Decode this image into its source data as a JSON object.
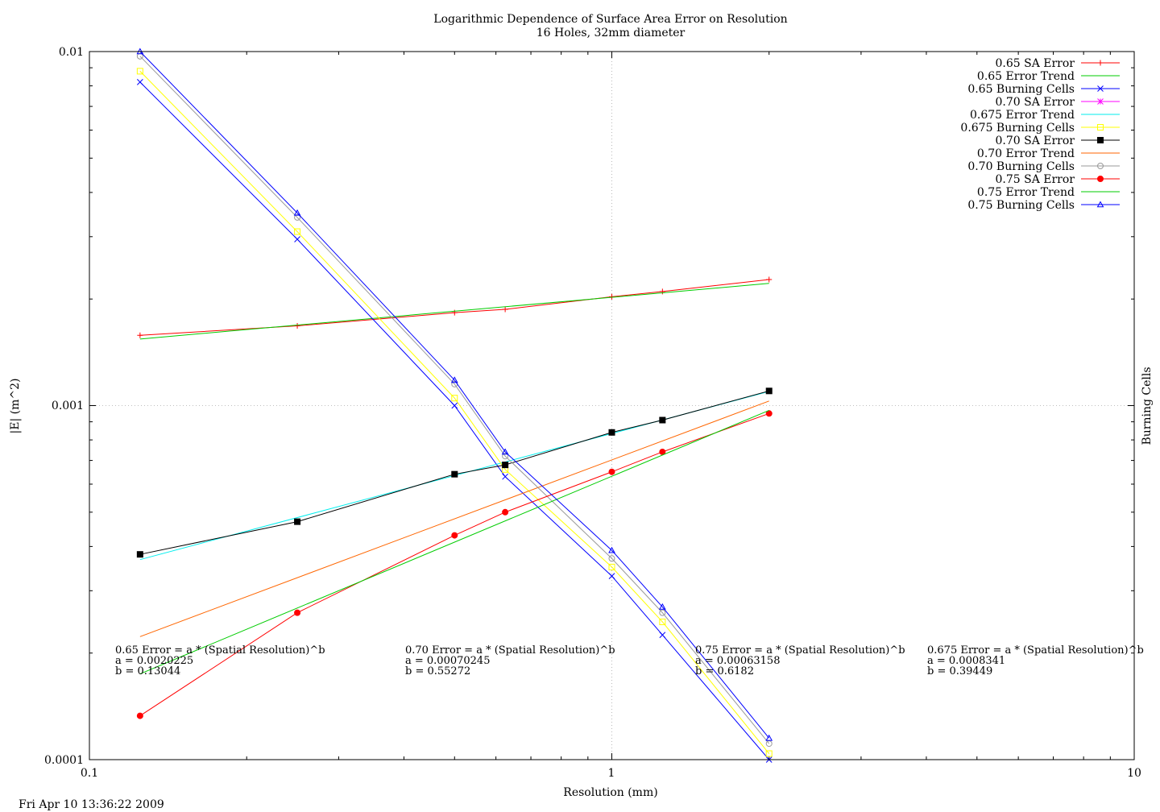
{
  "chart_data": {
    "type": "line",
    "title": "Logarithmic Dependence of Surface Area Error on Resolution",
    "subtitle": "16 Holes, 32mm diameter",
    "xlabel": "Resolution (mm)",
    "ylabel": "|E| (m^2)",
    "y2label": "Burning Cells",
    "x_scale": "log",
    "y_scale": "log",
    "xlim": [
      0.1,
      10
    ],
    "ylim": [
      0.0001,
      0.01
    ],
    "grid": "major",
    "legend_position": "top-right",
    "x_ticks": [
      "0.1",
      "1",
      "10"
    ],
    "y_ticks": [
      "0.0001",
      "0.001",
      "0.01"
    ],
    "timestamp": "Fri Apr 10 13:36:22 2009",
    "series": [
      {
        "name": "0.65 SA Error",
        "color": "#ff0000",
        "marker": "plus",
        "kind": "data",
        "x": [
          0.125,
          0.25,
          0.5,
          0.625,
          1,
          1.25,
          2
        ],
        "y": [
          0.00158,
          0.00168,
          0.00183,
          0.00187,
          0.00203,
          0.0021,
          0.00227
        ]
      },
      {
        "name": "0.65 Error Trend",
        "color": "#00cc00",
        "marker": "none",
        "kind": "trend",
        "a": 0.0020225,
        "b": 0.13044,
        "x": [
          0.125,
          2
        ]
      },
      {
        "name": "0.65 Burning Cells",
        "color": "#0000ff",
        "marker": "x",
        "kind": "data",
        "x": [
          0.125,
          0.25,
          0.5,
          0.625,
          1,
          1.25,
          2
        ],
        "y": [
          0.0082,
          0.00295,
          0.001,
          0.00063,
          0.00033,
          0.000225,
          0.0001
        ]
      },
      {
        "name": "0.70 SA Error",
        "color": "#ff00ff",
        "marker": "star",
        "kind": "data",
        "x": [],
        "y": []
      },
      {
        "name": "0.675 Error Trend",
        "color": "#00eeee",
        "marker": "none",
        "kind": "trend",
        "a": 0.0008341,
        "b": 0.39449,
        "x": [
          0.125,
          2
        ]
      },
      {
        "name": "0.675 Burning Cells",
        "color": "#ffff00",
        "marker": "square-open",
        "kind": "data",
        "x": [
          0.125,
          0.25,
          0.5,
          0.625,
          1,
          1.25,
          2
        ],
        "y": [
          0.0088,
          0.0031,
          0.00105,
          0.00066,
          0.00035,
          0.000245,
          0.000104
        ]
      },
      {
        "name": "0.70 SA Error",
        "color": "#000000",
        "marker": "square-filled",
        "kind": "data",
        "x": [
          0.125,
          0.25,
          0.5,
          0.625,
          1,
          1.25,
          2
        ],
        "y": [
          0.00038,
          0.00047,
          0.00064,
          0.00068,
          0.00084,
          0.00091,
          0.0011
        ]
      },
      {
        "name": "0.70 Error Trend",
        "color": "#ff6600",
        "marker": "none",
        "kind": "trend",
        "a": 0.00070245,
        "b": 0.55272,
        "x": [
          0.125,
          2
        ]
      },
      {
        "name": "0.70 Burning Cells",
        "color": "#999999",
        "marker": "circle-open",
        "kind": "data",
        "x": [
          0.125,
          0.25,
          0.5,
          0.625,
          1,
          1.25,
          2
        ],
        "y": [
          0.0097,
          0.0034,
          0.00115,
          0.00072,
          0.00037,
          0.00026,
          0.000111
        ]
      },
      {
        "name": "0.75 SA Error",
        "color": "#ff0000",
        "marker": "circle-filled",
        "kind": "data",
        "x": [
          0.125,
          0.25,
          0.5,
          0.625,
          1,
          1.25,
          2
        ],
        "y": [
          0.000133,
          0.00026,
          0.00043,
          0.0005,
          0.00065,
          0.00074,
          0.00095
        ]
      },
      {
        "name": "0.75 Error Trend",
        "color": "#00cc00",
        "marker": "none",
        "kind": "trend",
        "a": 0.00063158,
        "b": 0.6182,
        "x": [
          0.125,
          2
        ]
      },
      {
        "name": "0.75 Burning Cells",
        "color": "#0000ff",
        "marker": "triangle-open",
        "kind": "data",
        "x": [
          0.125,
          0.25,
          0.5,
          0.625,
          1,
          1.25,
          2
        ],
        "y": [
          0.01,
          0.0035,
          0.00118,
          0.00074,
          0.00039,
          0.00027,
          0.000115
        ]
      }
    ],
    "annotations": [
      {
        "lines": [
          "0.65 Error = a * (Spatial Resolution)^b",
          "a = 0.0020225",
          "b = 0.13044"
        ]
      },
      {
        "lines": [
          "0.70 Error = a * (Spatial Resolution)^b",
          "a = 0.00070245",
          "b = 0.55272"
        ]
      },
      {
        "lines": [
          "0.75 Error = a * (Spatial Resolution)^b",
          "a = 0.00063158",
          "b = 0.6182"
        ]
      },
      {
        "lines": [
          "0.675 Error = a * (Spatial Resolution)^b",
          "a = 0.0008341",
          "b = 0.39449"
        ]
      }
    ]
  }
}
